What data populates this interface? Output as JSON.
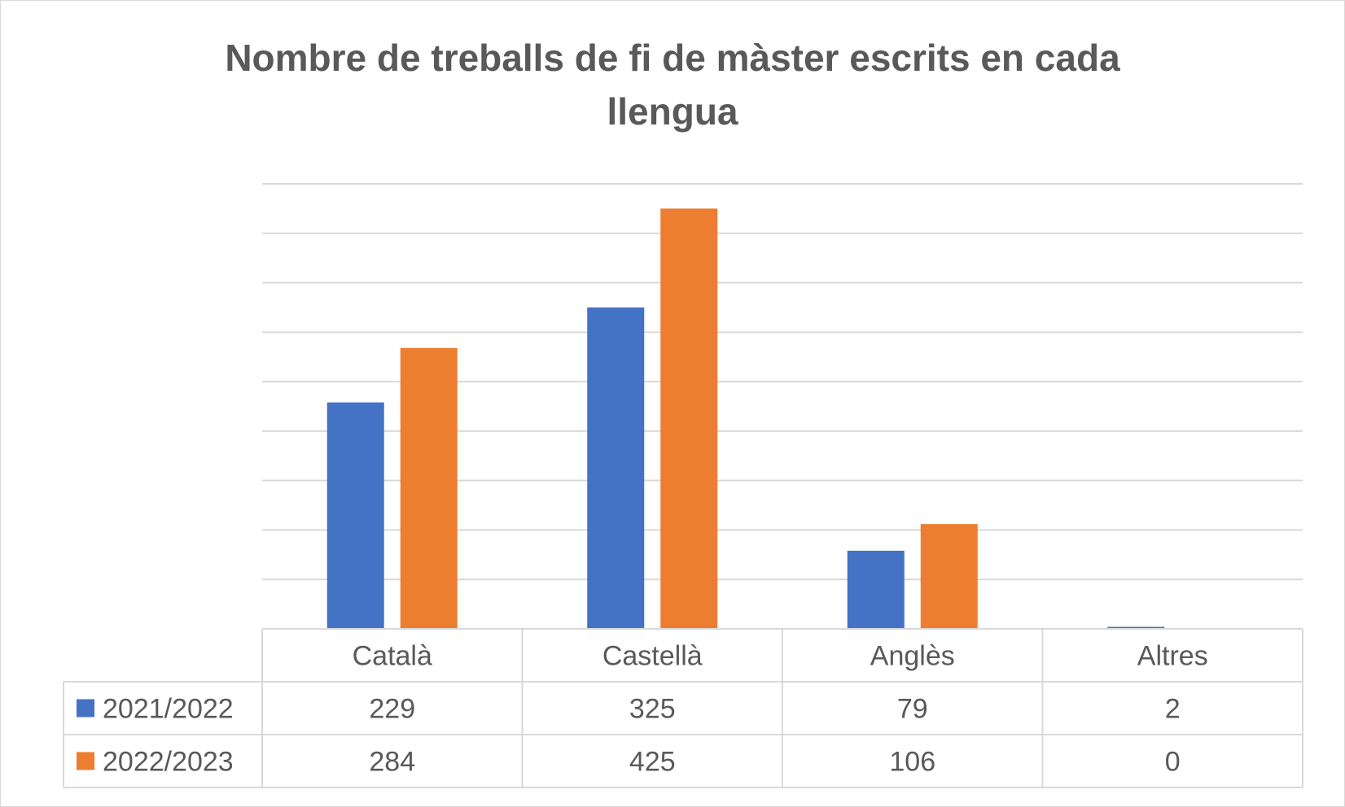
{
  "chart_data": {
    "type": "bar",
    "title_lines": [
      "Nombre de treballs de fi de màster escrits en cada",
      "llengua"
    ],
    "categories": [
      "Català",
      "Castellà",
      "Anglès",
      "Altres"
    ],
    "series": [
      {
        "name": "2021/2022",
        "color": "#4472c4",
        "values": [
          229,
          325,
          79,
          2
        ]
      },
      {
        "name": "2022/2023",
        "color": "#ed7d31",
        "values": [
          284,
          425,
          106,
          0
        ]
      }
    ],
    "ylim": [
      0,
      450
    ],
    "y_gridline_step": 50,
    "grid": true,
    "legend": "data-table",
    "data_table": true
  }
}
